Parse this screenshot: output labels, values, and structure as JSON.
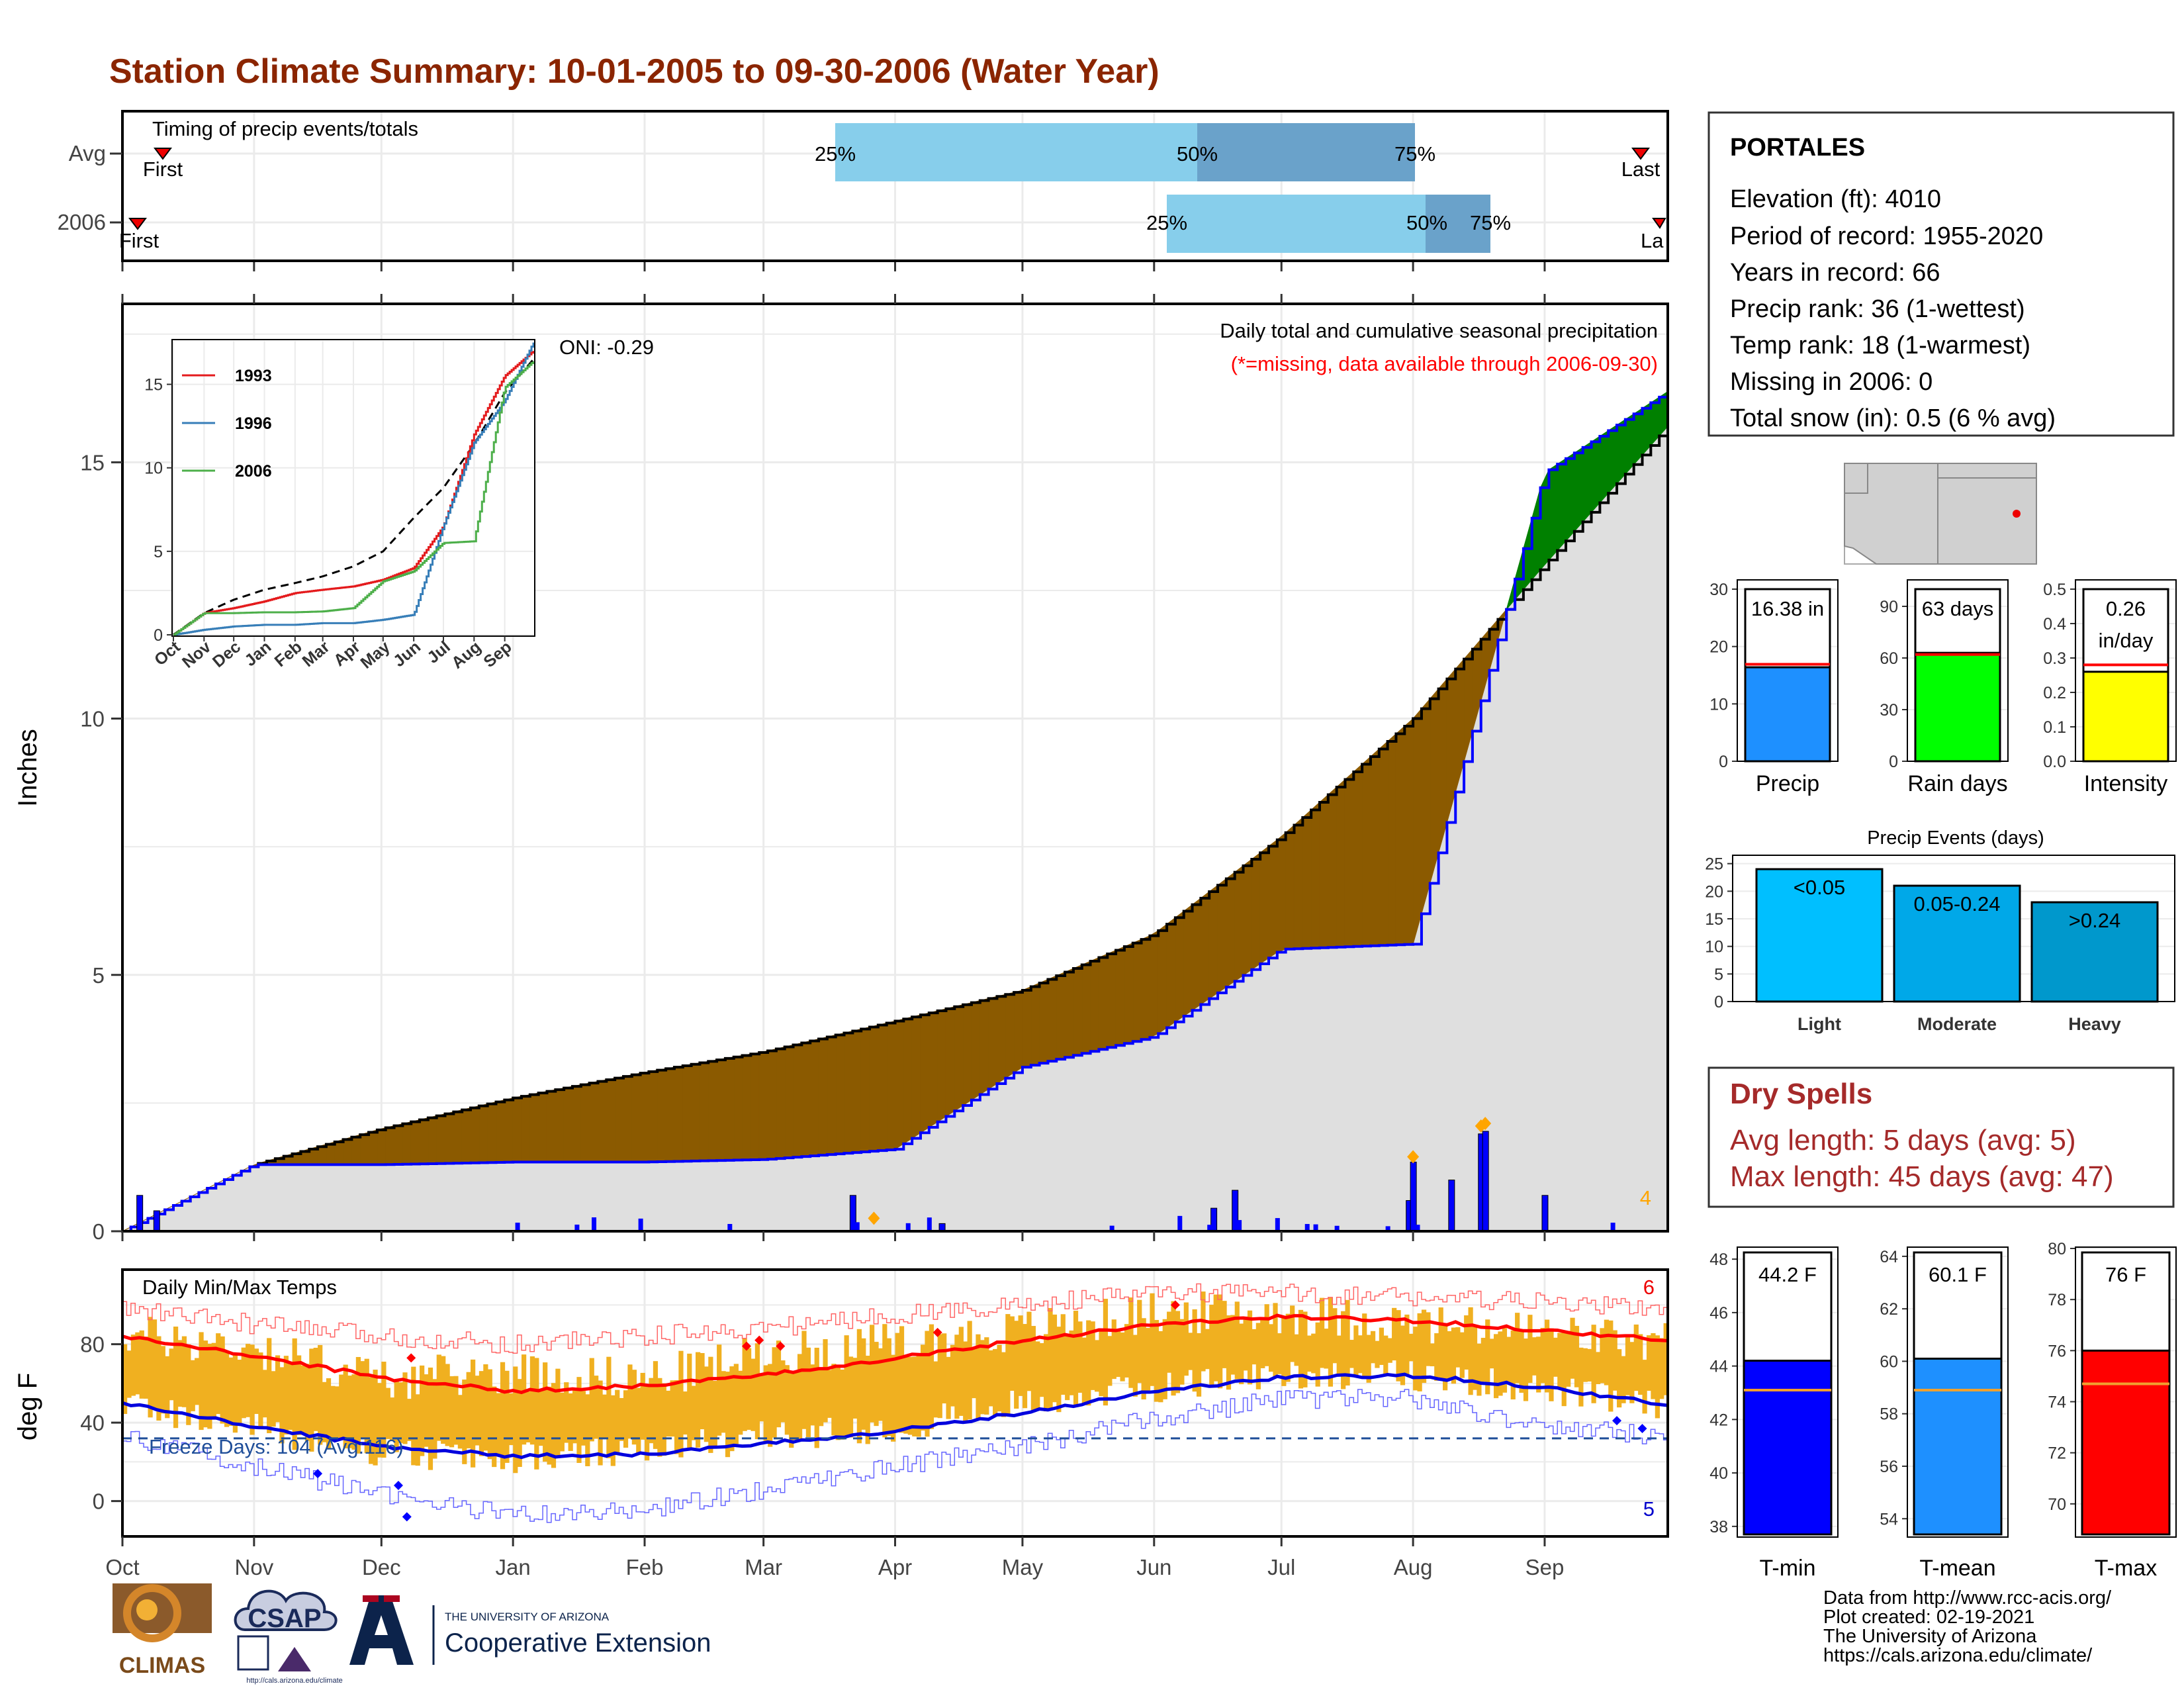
{
  "title": "Station Climate Summary: 10-01-2005 to 09-30-2006 (Water Year)",
  "colors": {
    "title": "#8b2500",
    "bar_light": "#87ceeb",
    "bar_dark": "#6aa2ca",
    "green": "#008000",
    "brown": "#8b5a00",
    "grey_area": "#dfdfdf",
    "blue": "#0000ff",
    "orange": "#f0b020",
    "red": "#ff0000",
    "dry_spell": "#a52a2a"
  },
  "timing": {
    "label": "Timing of precip events/totals",
    "rows": [
      {
        "name": "Avg",
        "first_label": "First",
        "last_label": "Last",
        "p25_label": "25%",
        "p50_label": "50%",
        "p75_label": "75%"
      },
      {
        "name": "2006",
        "first_label": "First",
        "last_label": "La",
        "p25_label": "25%",
        "p50_label": "50%",
        "p75_label": "75%"
      }
    ]
  },
  "precip_panel": {
    "ylabel": "Inches",
    "oni_text": "ONI: -0.29",
    "header": "Daily total and cumulative seasonal precipitation",
    "missing_note": "(*=missing, data available through 2006-09-30)",
    "count_label": "4",
    "y_ticks": [
      "0",
      "5",
      "10",
      "15"
    ]
  },
  "inset": {
    "series": [
      {
        "name": "1993",
        "color": "#e41a1c"
      },
      {
        "name": "1996",
        "color": "#377eb8"
      },
      {
        "name": "2006",
        "color": "#4daf4a"
      }
    ],
    "y_ticks": [
      "0",
      "5",
      "10",
      "15"
    ],
    "x_ticks": [
      "Oct",
      "Nov",
      "Dec",
      "Jan",
      "Feb",
      "Mar",
      "Apr",
      "May",
      "Jun",
      "Jul",
      "Aug",
      "Sep"
    ]
  },
  "temp_panel": {
    "title": "Daily Min/Max Temps",
    "ylabel": "deg F",
    "freeze_text": "Freeze Days: 104 (Avg:116)",
    "max_count": "6",
    "min_count": "5",
    "y_ticks": [
      "0",
      "40",
      "80"
    ]
  },
  "months": [
    "Oct",
    "Nov",
    "Dec",
    "Jan",
    "Feb",
    "Mar",
    "Apr",
    "May",
    "Jun",
    "Jul",
    "Aug",
    "Sep"
  ],
  "station": {
    "name": "PORTALES",
    "lines": [
      "Elevation (ft): 4010",
      "Period of record: 1955-2020",
      "Years in record: 66",
      "Precip rank: 36 (1-wettest)",
      "Temp rank: 18 (1-warmest)",
      "Missing in 2006: 0",
      "Total snow (in): 0.5 (6 % avg)"
    ]
  },
  "summary_bars": [
    {
      "label": "Precip",
      "value_text": "16.38 in",
      "value": 16.38,
      "avg": 16.9,
      "ymax": 30,
      "ticks": [
        "0",
        "10",
        "20",
        "30"
      ],
      "color": "#1e90ff"
    },
    {
      "label": "Rain days",
      "value_text": "63 days",
      "value": 63,
      "avg": 62,
      "ymax": 100,
      "ticks": [
        "0",
        "30",
        "60",
        "90"
      ],
      "color": "#00ff00"
    },
    {
      "label": "Intensity",
      "value_text": "0.26 in/day",
      "value_line1": "0.26",
      "value_line2": "in/day",
      "value": 0.26,
      "avg": 0.28,
      "ymax": 0.5,
      "ticks": [
        "0.0",
        "0.1",
        "0.2",
        "0.3",
        "0.4",
        "0.5"
      ],
      "color": "#ffff00"
    }
  ],
  "precip_events": {
    "title": "Precip Events (days)",
    "categories": [
      "Light",
      "Moderate",
      "Heavy"
    ],
    "bins": [
      "<0.05",
      "0.05-0.24",
      ">0.24"
    ],
    "values": [
      24,
      21,
      18
    ],
    "colors": [
      "#00bfff",
      "#00a8e8",
      "#0098cc"
    ],
    "ticks": [
      "0",
      "5",
      "10",
      "15",
      "20",
      "25"
    ]
  },
  "dry_spells": {
    "title": "Dry Spells",
    "avg_length": "Avg length: 5 days (avg: 5)",
    "max_length": "Max length: 45 days (avg: 47)"
  },
  "temp_bars": [
    {
      "label": "T-min",
      "value_text": "44.2 F",
      "value": 44.2,
      "avg": 43.1,
      "ymin": 37.6,
      "ymax": 48.4,
      "ticks": [
        "38",
        "40",
        "42",
        "44",
        "46",
        "48"
      ],
      "color": "#0000ff"
    },
    {
      "label": "T-mean",
      "value_text": "60.1 F",
      "value": 60.1,
      "avg": 58.9,
      "ymin": 53.3,
      "ymax": 64.3,
      "ticks": [
        "54",
        "56",
        "58",
        "60",
        "62",
        "64"
      ],
      "color": "#1e90ff"
    },
    {
      "label": "T-max",
      "value_text": "76 F",
      "value": 76.0,
      "avg": 74.7,
      "ymin": 68.7,
      "ymax": 80.0,
      "ticks": [
        "70",
        "72",
        "74",
        "76",
        "78",
        "80"
      ],
      "color": "#ff0000"
    }
  ],
  "footer": {
    "lines": [
      "Data from http://www.rcc-acis.org/",
      "Plot created: 02-19-2021",
      "The University of Arizona",
      "https://cals.arizona.edu/climate/"
    ],
    "logos": {
      "climas": "CLIMAS",
      "csap": "CSAP",
      "csap_url": "http://cals.arizona.edu/climate",
      "ua_line1": "THE UNIVERSITY OF ARIZONA",
      "ua_line2": "Cooperative Extension"
    }
  },
  "chart_data": [
    {
      "type": "area",
      "title": "Daily total and cumulative seasonal precipitation",
      "ylabel": "Inches",
      "ylim": [
        0,
        18
      ],
      "x": [
        "Oct",
        "Nov",
        "Dec",
        "Jan",
        "Feb",
        "Mar",
        "Apr",
        "May",
        "Jun",
        "Jul",
        "Aug",
        "Sep",
        "Sep-30"
      ],
      "series": [
        {
          "name": "avg_cumulative",
          "values": [
            0,
            1.3,
            2.0,
            2.6,
            3.1,
            3.5,
            4.1,
            4.7,
            5.8,
            7.7,
            10.0,
            13.0,
            15.7
          ]
        },
        {
          "name": "2006_cumulative",
          "values": [
            0,
            1.3,
            1.3,
            1.35,
            1.35,
            1.4,
            1.6,
            3.2,
            3.8,
            5.5,
            5.6,
            14.8,
            16.38
          ]
        }
      ],
      "daily_precip_events": [
        {
          "date": "2005-10-05",
          "value": 0.7
        },
        {
          "date": "2005-10-09",
          "value": 0.4
        },
        {
          "date": "2006-03-22",
          "value": 0.7
        },
        {
          "date": "2006-04-12",
          "value": 0.15
        },
        {
          "date": "2006-06-15",
          "value": 0.45
        },
        {
          "date": "2006-06-20",
          "value": 0.8
        },
        {
          "date": "2006-07-31",
          "value": 0.6
        },
        {
          "date": "2006-08-01",
          "value": 1.35
        },
        {
          "date": "2006-08-10",
          "value": 1.0
        },
        {
          "date": "2006-08-17",
          "value": 1.9
        },
        {
          "date": "2006-08-18",
          "value": 1.95
        },
        {
          "date": "2006-09-01",
          "value": 0.7
        }
      ],
      "max_markers": [
        {
          "date": "2006-03-27",
          "value": 0.15
        },
        {
          "date": "2006-08-01",
          "value": 1.35
        },
        {
          "date": "2006-08-17",
          "value": 1.95
        },
        {
          "date": "2006-08-18",
          "value": 2.0
        }
      ]
    },
    {
      "type": "line",
      "ylim": [
        0,
        18
      ],
      "x": [
        "Oct",
        "Nov",
        "Dec",
        "Jan",
        "Feb",
        "Mar",
        "Apr",
        "May",
        "Jun",
        "Jul",
        "Aug",
        "Sep",
        "Sep-30"
      ],
      "series": [
        {
          "name": "avg",
          "values": [
            0,
            1.3,
            2.1,
            2.7,
            3.1,
            3.5,
            4.1,
            5.0,
            7.0,
            8.8,
            11.4,
            14.5,
            16.5
          ]
        },
        {
          "name": "1993",
          "values": [
            0,
            1.3,
            1.6,
            2.0,
            2.5,
            2.7,
            2.9,
            3.3,
            4.0,
            6.5,
            12.0,
            15.5,
            17.0
          ]
        },
        {
          "name": "1996",
          "values": [
            0,
            0.3,
            0.5,
            0.6,
            0.6,
            0.7,
            0.7,
            0.9,
            1.2,
            6.5,
            11.5,
            14.0,
            17.5
          ]
        },
        {
          "name": "2006",
          "values": [
            0,
            1.3,
            1.3,
            1.35,
            1.35,
            1.4,
            1.6,
            3.2,
            3.8,
            5.5,
            5.6,
            14.8,
            16.38
          ]
        }
      ]
    },
    {
      "type": "line",
      "title": "Daily Min/Max Temps",
      "ylabel": "deg F",
      "ylim": [
        -18,
        118
      ],
      "x": [
        "Oct",
        "Nov",
        "Dec",
        "Jan",
        "Feb",
        "Mar",
        "Apr",
        "May",
        "Jun",
        "Jul",
        "Aug",
        "Sep",
        "Sep-30"
      ],
      "series": [
        {
          "name": "avg_max",
          "values": [
            84,
            74,
            63,
            56,
            59,
            64,
            73,
            82,
            90,
            94,
            92,
            87,
            82
          ]
        },
        {
          "name": "avg_min",
          "values": [
            50,
            38,
            28,
            23,
            24,
            29,
            36,
            45,
            56,
            63,
            64,
            58,
            49
          ]
        },
        {
          "name": "record_max",
          "values": [
            98,
            90,
            84,
            80,
            84,
            88,
            95,
            100,
            106,
            106,
            104,
            101,
            98
          ]
        },
        {
          "name": "record_min",
          "values": [
            33,
            18,
            3,
            -7,
            -5,
            6,
            18,
            28,
            42,
            52,
            52,
            38,
            33
          ]
        },
        {
          "name": "obs_max",
          "values": [
            85,
            78,
            62,
            66,
            62,
            75,
            80,
            87,
            96,
            96,
            90,
            86,
            80
          ]
        },
        {
          "name": "obs_min",
          "values": [
            50,
            37,
            24,
            22,
            25,
            33,
            38,
            50,
            58,
            65,
            64,
            57,
            47
          ]
        }
      ],
      "freeze_threshold": 32
    }
  ]
}
